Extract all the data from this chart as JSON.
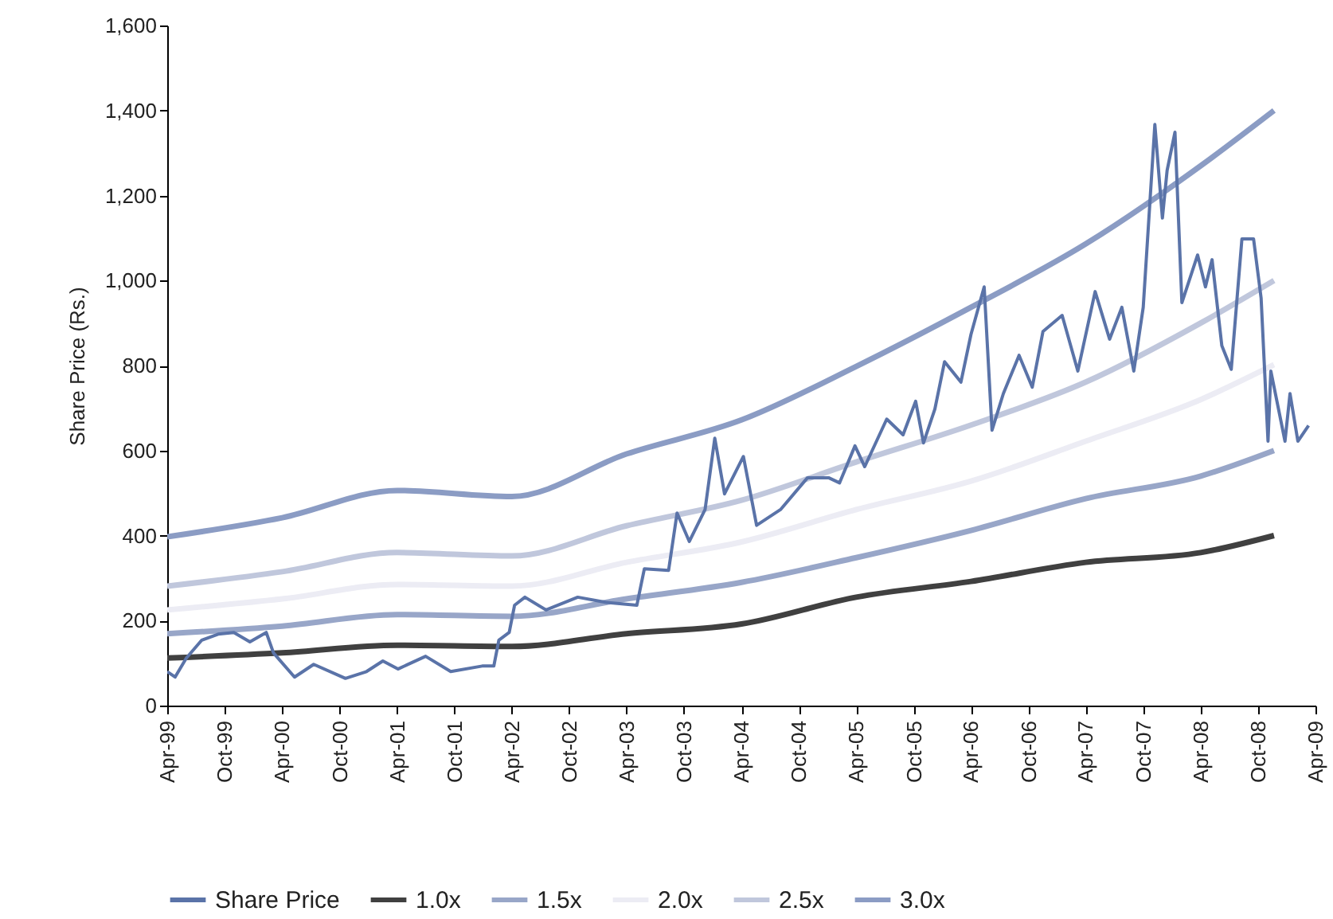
{
  "chart_data": {
    "type": "line",
    "ylabel": "Share Price (Rs.)",
    "xlim": [
      "1999-04",
      "2009-04"
    ],
    "xticks": [
      {
        "value": "1999-04",
        "label": "Apr-99"
      },
      {
        "value": "1999-10",
        "label": "Oct-99"
      },
      {
        "value": "2000-04",
        "label": "Apr-00"
      },
      {
        "value": "2000-10",
        "label": "Oct-00"
      },
      {
        "value": "2001-04",
        "label": "Apr-01"
      },
      {
        "value": "2001-10",
        "label": "Oct-01"
      },
      {
        "value": "2002-04",
        "label": "Apr-02"
      },
      {
        "value": "2002-10",
        "label": "Oct-02"
      },
      {
        "value": "2003-04",
        "label": "Apr-03"
      },
      {
        "value": "2003-10",
        "label": "Oct-03"
      },
      {
        "value": "2004-04",
        "label": "Apr-04"
      },
      {
        "value": "2004-10",
        "label": "Oct-04"
      },
      {
        "value": "2005-04",
        "label": "Apr-05"
      },
      {
        "value": "2005-10",
        "label": "Oct-05"
      },
      {
        "value": "2006-04",
        "label": "Apr-06"
      },
      {
        "value": "2006-10",
        "label": "Oct-06"
      },
      {
        "value": "2007-04",
        "label": "Apr-07"
      },
      {
        "value": "2007-10",
        "label": "Oct-07"
      },
      {
        "value": "2008-04",
        "label": "Apr-08"
      },
      {
        "value": "2008-10",
        "label": "Oct-08"
      },
      {
        "value": "2009-04",
        "label": "Apr-09"
      }
    ],
    "ylim": [
      0,
      1600
    ],
    "yticks": [
      0,
      200,
      400,
      600,
      800,
      {
        "value": 1000,
        "label": "1,000"
      },
      {
        "value": 1200,
        "label": "1,200"
      },
      {
        "value": 1400,
        "label": "1,400"
      },
      {
        "value": 1600,
        "label": "1,600"
      }
    ],
    "grid": false,
    "legend": "bottom",
    "line_style": "solid",
    "series": [
      {
        "name": "Share Price",
        "color": "#5a73a8",
        "x": [
          "1999-04-01",
          "1999-04-26",
          "1999-06-01",
          "1999-07-20",
          "1999-09-10",
          "1999-10-30",
          "1999-12-20",
          "2000-02-10",
          "2000-03-04",
          "2000-05-10",
          "2000-07-10",
          "2000-10-19",
          "2000-12-25",
          "2001-02-15",
          "2001-04-04",
          "2001-07-01",
          "2001-09-19",
          "2001-12-28",
          "2002-02-03",
          "2002-02-19",
          "2002-03-24",
          "2002-04-10",
          "2002-05-13",
          "2002-07-19",
          "2002-10-28",
          "2003-01-24",
          "2003-05-04",
          "2003-05-28",
          "2003-08-13",
          "2003-09-09",
          "2003-10-18",
          "2003-12-07",
          "2004-01-07",
          "2004-02-07",
          "2004-04-07",
          "2004-05-19",
          "2004-08-03",
          "2004-10-28",
          "2005-01-03",
          "2005-02-07",
          "2005-03-28",
          "2005-04-28",
          "2005-07-07",
          "2005-08-28",
          "2005-10-07",
          "2005-11-01",
          "2005-12-07",
          "2006-01-07",
          "2006-02-28",
          "2006-04-01",
          "2006-05-13",
          "2006-06-07",
          "2006-07-13",
          "2006-09-01",
          "2006-10-13",
          "2006-11-16",
          "2007-01-16",
          "2007-03-07",
          "2007-05-01",
          "2007-06-16",
          "2007-07-25",
          "2007-09-01",
          "2007-10-01",
          "2007-11-07",
          "2007-12-01",
          "2007-12-16",
          "2008-01-10",
          "2008-02-01",
          "2008-03-22",
          "2008-04-16",
          "2008-05-07",
          "2008-06-07",
          "2008-07-07",
          "2008-08-10",
          "2008-09-16",
          "2008-10-10",
          "2008-11-01",
          "2008-11-10",
          "2008-12-25",
          "2009-01-10",
          "2009-02-04",
          "2009-03-10"
        ],
        "values": [
          80,
          67,
          112,
          154,
          168,
          172,
          150,
          172,
          124,
          67,
          97,
          64,
          80,
          105,
          86,
          116,
          80,
          93,
          93,
          154,
          172,
          236,
          255,
          225,
          255,
          243,
          236,
          322,
          318,
          453,
          386,
          461,
          629,
          498,
          586,
          424,
          461,
          536,
          536,
          524,
          611,
          562,
          674,
          637,
          716,
          618,
          697,
          809,
          761,
          873,
          985,
          648,
          734,
          824,
          749,
          880,
          918,
          787,
          974,
          862,
          937,
          787,
          937,
          1367,
          1147,
          1259,
          1349,
          948,
          1060,
          985,
          1049,
          847,
          791,
          1098,
          1098,
          959,
          622,
          787,
          622,
          734,
          622,
          659
        ]
      },
      {
        "name": "1.0x",
        "color": "#404040",
        "x": [
          "1999-04",
          "2000-04",
          "2001-04",
          "2002-04",
          "2003-04",
          "2004-04",
          "2005-04",
          "2006-04",
          "2007-04",
          "2008-04",
          "2008-11-20"
        ],
        "values": [
          112,
          124,
          142,
          139,
          169,
          192,
          255,
          292,
          337,
          360,
          400
        ]
      },
      {
        "name": "1.5x",
        "color": "#98a6c8",
        "x": [
          "1999-04",
          "2000-04",
          "2001-04",
          "2002-04",
          "2003-04",
          "2004-04",
          "2005-04",
          "2006-04",
          "2007-04",
          "2008-04",
          "2008-11-20"
        ],
        "values": [
          169,
          187,
          214,
          210,
          251,
          290,
          348,
          412,
          487,
          540,
          600
        ]
      },
      {
        "name": "2.0x",
        "color": "#ececf4",
        "x": [
          "1999-04",
          "2000-04",
          "2001-04",
          "2002-04",
          "2003-04",
          "2004-04",
          "2005-04",
          "2006-04",
          "2007-04",
          "2008-04",
          "2008-11-20"
        ],
        "values": [
          225,
          251,
          285,
          281,
          337,
          385,
          461,
          528,
          622,
          720,
          802
        ]
      },
      {
        "name": "2.5x",
        "color": "#c0c7dc",
        "x": [
          "1999-04",
          "2000-04",
          "2001-04",
          "2002-04",
          "2003-04",
          "2004-04",
          "2005-04",
          "2006-04",
          "2007-04",
          "2008-04",
          "2008-11-20"
        ],
        "values": [
          281,
          315,
          360,
          352,
          423,
          483,
          573,
          660,
          761,
          900,
          1000
        ]
      },
      {
        "name": "3.0x",
        "color": "#8b9cc4",
        "x": [
          "1999-04",
          "2000-04",
          "2001-04",
          "2002-04",
          "2003-04",
          "2004-04",
          "2005-04",
          "2006-04",
          "2007-04",
          "2008-04",
          "2008-11-20"
        ],
        "values": [
          397,
          442,
          506,
          492,
          592,
          672,
          798,
          937,
          1086,
          1270,
          1400
        ]
      }
    ]
  }
}
